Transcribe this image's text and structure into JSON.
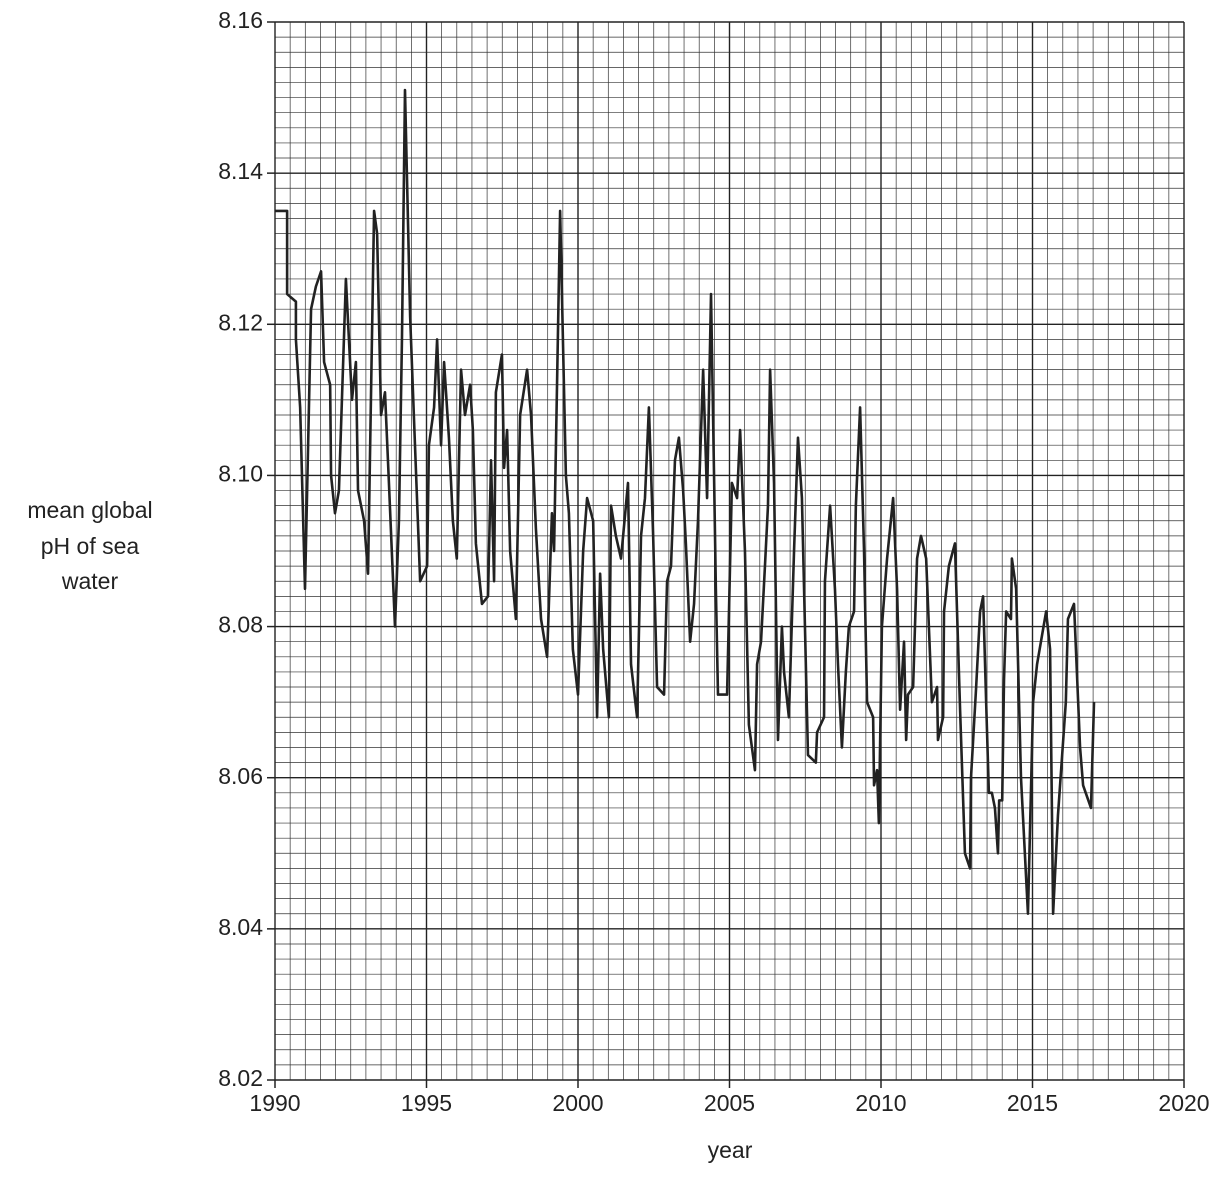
{
  "chart_data": {
    "type": "line",
    "ylabel": [
      "mean global",
      "pH of sea",
      "water"
    ],
    "xlabel": "year",
    "xlim": [
      1990,
      2020
    ],
    "xticks": [
      1990,
      1995,
      2000,
      2005,
      2010,
      2015,
      2020
    ],
    "ylim": [
      8.02,
      8.16
    ],
    "yticks": [
      8.02,
      8.04,
      8.06,
      8.08,
      {
        "value": 8.1,
        "label": "8.10"
      },
      8.12,
      8.14,
      8.16
    ],
    "grid": true,
    "series": [
      {
        "color": "#222222",
        "x": [
          1990.0,
          1990.4,
          1990.4,
          1990.69,
          1990.69,
          1990.83,
          1990.99,
          1991.19,
          1991.35,
          1991.52,
          1991.62,
          1991.82,
          1991.85,
          1991.98,
          1992.11,
          1992.34,
          1992.54,
          1992.67,
          1992.74,
          1992.94,
          1993.07,
          1993.27,
          1993.37,
          1993.5,
          1993.63,
          1993.76,
          1993.96,
          1994.09,
          1994.19,
          1994.29,
          1994.46,
          1994.62,
          1994.79,
          1995.02,
          1995.08,
          1995.25,
          1995.35,
          1995.48,
          1995.58,
          1995.74,
          1995.87,
          1996.0,
          1996.14,
          1996.27,
          1996.44,
          1996.53,
          1996.63,
          1996.83,
          1997.03,
          1997.13,
          1997.23,
          1997.29,
          1997.49,
          1997.56,
          1997.66,
          1997.76,
          1997.95,
          1998.09,
          1998.32,
          1998.45,
          1998.61,
          1998.78,
          1998.98,
          1999.14,
          1999.21,
          1999.41,
          1999.6,
          1999.7,
          1999.83,
          2000.0,
          2000.17,
          2000.3,
          2000.5,
          2000.63,
          2000.73,
          2000.83,
          2001.02,
          2001.09,
          2001.25,
          2001.42,
          2001.65,
          2001.75,
          2001.95,
          2002.08,
          2002.21,
          2002.34,
          2002.48,
          2002.61,
          2002.84,
          2002.94,
          2003.07,
          2003.2,
          2003.33,
          2003.47,
          2003.56,
          2003.7,
          2003.83,
          2003.96,
          2004.13,
          2004.26,
          2004.39,
          2004.49,
          2004.55,
          2004.62,
          2004.92,
          2005.08,
          2005.25,
          2005.35,
          2005.51,
          2005.64,
          2005.84,
          2005.91,
          2006.04,
          2006.17,
          2006.27,
          2006.34,
          2006.47,
          2006.6,
          2006.73,
          2006.8,
          2006.96,
          2007.13,
          2007.26,
          2007.39,
          2007.59,
          2007.85,
          2007.89,
          2008.12,
          2008.15,
          2008.32,
          2008.48,
          2008.58,
          2008.71,
          2008.84,
          2008.94,
          2009.11,
          2009.17,
          2009.31,
          2009.44,
          2009.54,
          2009.74,
          2009.77,
          2009.87,
          2009.93,
          2010.03,
          2010.2,
          2010.4,
          2010.53,
          2010.63,
          2010.76,
          2010.83,
          2010.89,
          2011.06,
          2011.19,
          2011.32,
          2011.49,
          2011.68,
          2011.85,
          2011.88,
          2012.05,
          2012.08,
          2012.24,
          2012.44,
          2012.61,
          2012.77,
          2012.94,
          2012.97,
          2013.14,
          2013.27,
          2013.37,
          2013.47,
          2013.56,
          2013.66,
          2013.76,
          2013.86,
          2013.9,
          2014.0,
          2014.06,
          2014.13,
          2014.29,
          2014.32,
          2014.46,
          2014.62,
          2014.85,
          2015.02,
          2015.15,
          2015.45,
          2015.58,
          2015.68,
          2015.84,
          2016.1,
          2016.17,
          2016.37,
          2016.57,
          2016.67,
          2016.93,
          2017.03
        ],
        "values": [
          8.135,
          8.135,
          8.124,
          8.123,
          8.118,
          8.109,
          8.085,
          8.122,
          8.125,
          8.127,
          8.115,
          8.112,
          8.1,
          8.095,
          8.098,
          8.126,
          8.11,
          8.115,
          8.098,
          8.094,
          8.087,
          8.135,
          8.132,
          8.108,
          8.111,
          8.099,
          8.08,
          8.094,
          8.118,
          8.151,
          8.121,
          8.104,
          8.086,
          8.088,
          8.104,
          8.109,
          8.118,
          8.104,
          8.115,
          8.105,
          8.094,
          8.089,
          8.114,
          8.108,
          8.112,
          8.106,
          8.091,
          8.083,
          8.084,
          8.102,
          8.086,
          8.111,
          8.116,
          8.101,
          8.106,
          8.09,
          8.081,
          8.108,
          8.114,
          8.108,
          8.093,
          8.081,
          8.076,
          8.095,
          8.09,
          8.135,
          8.1,
          8.095,
          8.077,
          8.071,
          8.09,
          8.097,
          8.094,
          8.068,
          8.087,
          8.077,
          8.068,
          8.096,
          8.092,
          8.089,
          8.099,
          8.075,
          8.068,
          8.092,
          8.097,
          8.109,
          8.092,
          8.072,
          8.071,
          8.086,
          8.088,
          8.102,
          8.105,
          8.098,
          8.091,
          8.078,
          8.083,
          8.094,
          8.114,
          8.097,
          8.124,
          8.1,
          8.085,
          8.071,
          8.071,
          8.099,
          8.097,
          8.106,
          8.09,
          8.067,
          8.061,
          8.075,
          8.078,
          8.088,
          8.096,
          8.114,
          8.099,
          8.065,
          8.08,
          8.074,
          8.068,
          8.09,
          8.105,
          8.097,
          8.063,
          8.062,
          8.066,
          8.068,
          8.086,
          8.096,
          8.085,
          8.075,
          8.064,
          8.074,
          8.08,
          8.082,
          8.096,
          8.109,
          8.09,
          8.07,
          8.068,
          8.059,
          8.061,
          8.054,
          8.08,
          8.089,
          8.097,
          8.085,
          8.069,
          8.078,
          8.065,
          8.071,
          8.072,
          8.089,
          8.092,
          8.089,
          8.07,
          8.072,
          8.065,
          8.068,
          8.082,
          8.088,
          8.091,
          8.069,
          8.05,
          8.048,
          8.06,
          8.072,
          8.082,
          8.084,
          8.07,
          8.058,
          8.058,
          8.056,
          8.05,
          8.057,
          8.057,
          8.073,
          8.082,
          8.081,
          8.089,
          8.085,
          8.06,
          8.042,
          8.07,
          8.075,
          8.082,
          8.077,
          8.042,
          8.055,
          8.07,
          8.081,
          8.083,
          8.064,
          8.059,
          8.056,
          8.07
        ]
      }
    ]
  }
}
